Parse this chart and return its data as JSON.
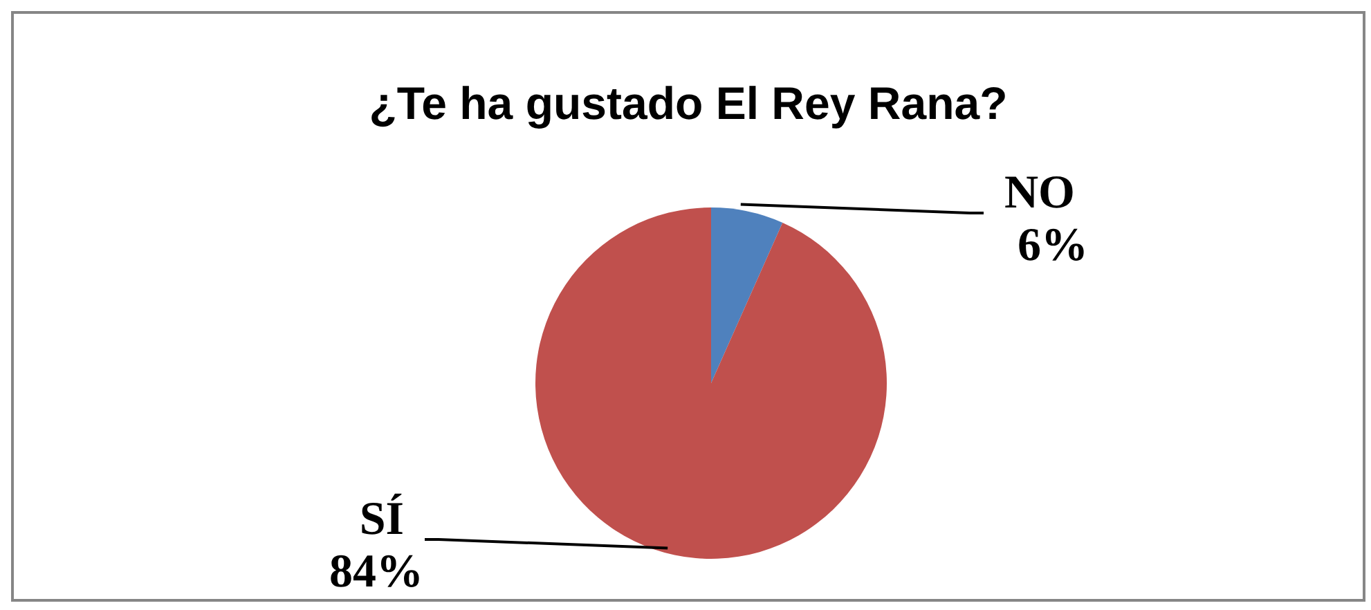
{
  "chart_data": {
    "type": "pie",
    "title": "¿Te ha gustado El Rey Rana?",
    "categories": [
      "NO",
      "SÍ"
    ],
    "values": [
      6,
      84
    ],
    "colors": [
      "#4f81bd",
      "#c0504d"
    ],
    "value_labels": [
      "6%",
      "84%"
    ]
  }
}
